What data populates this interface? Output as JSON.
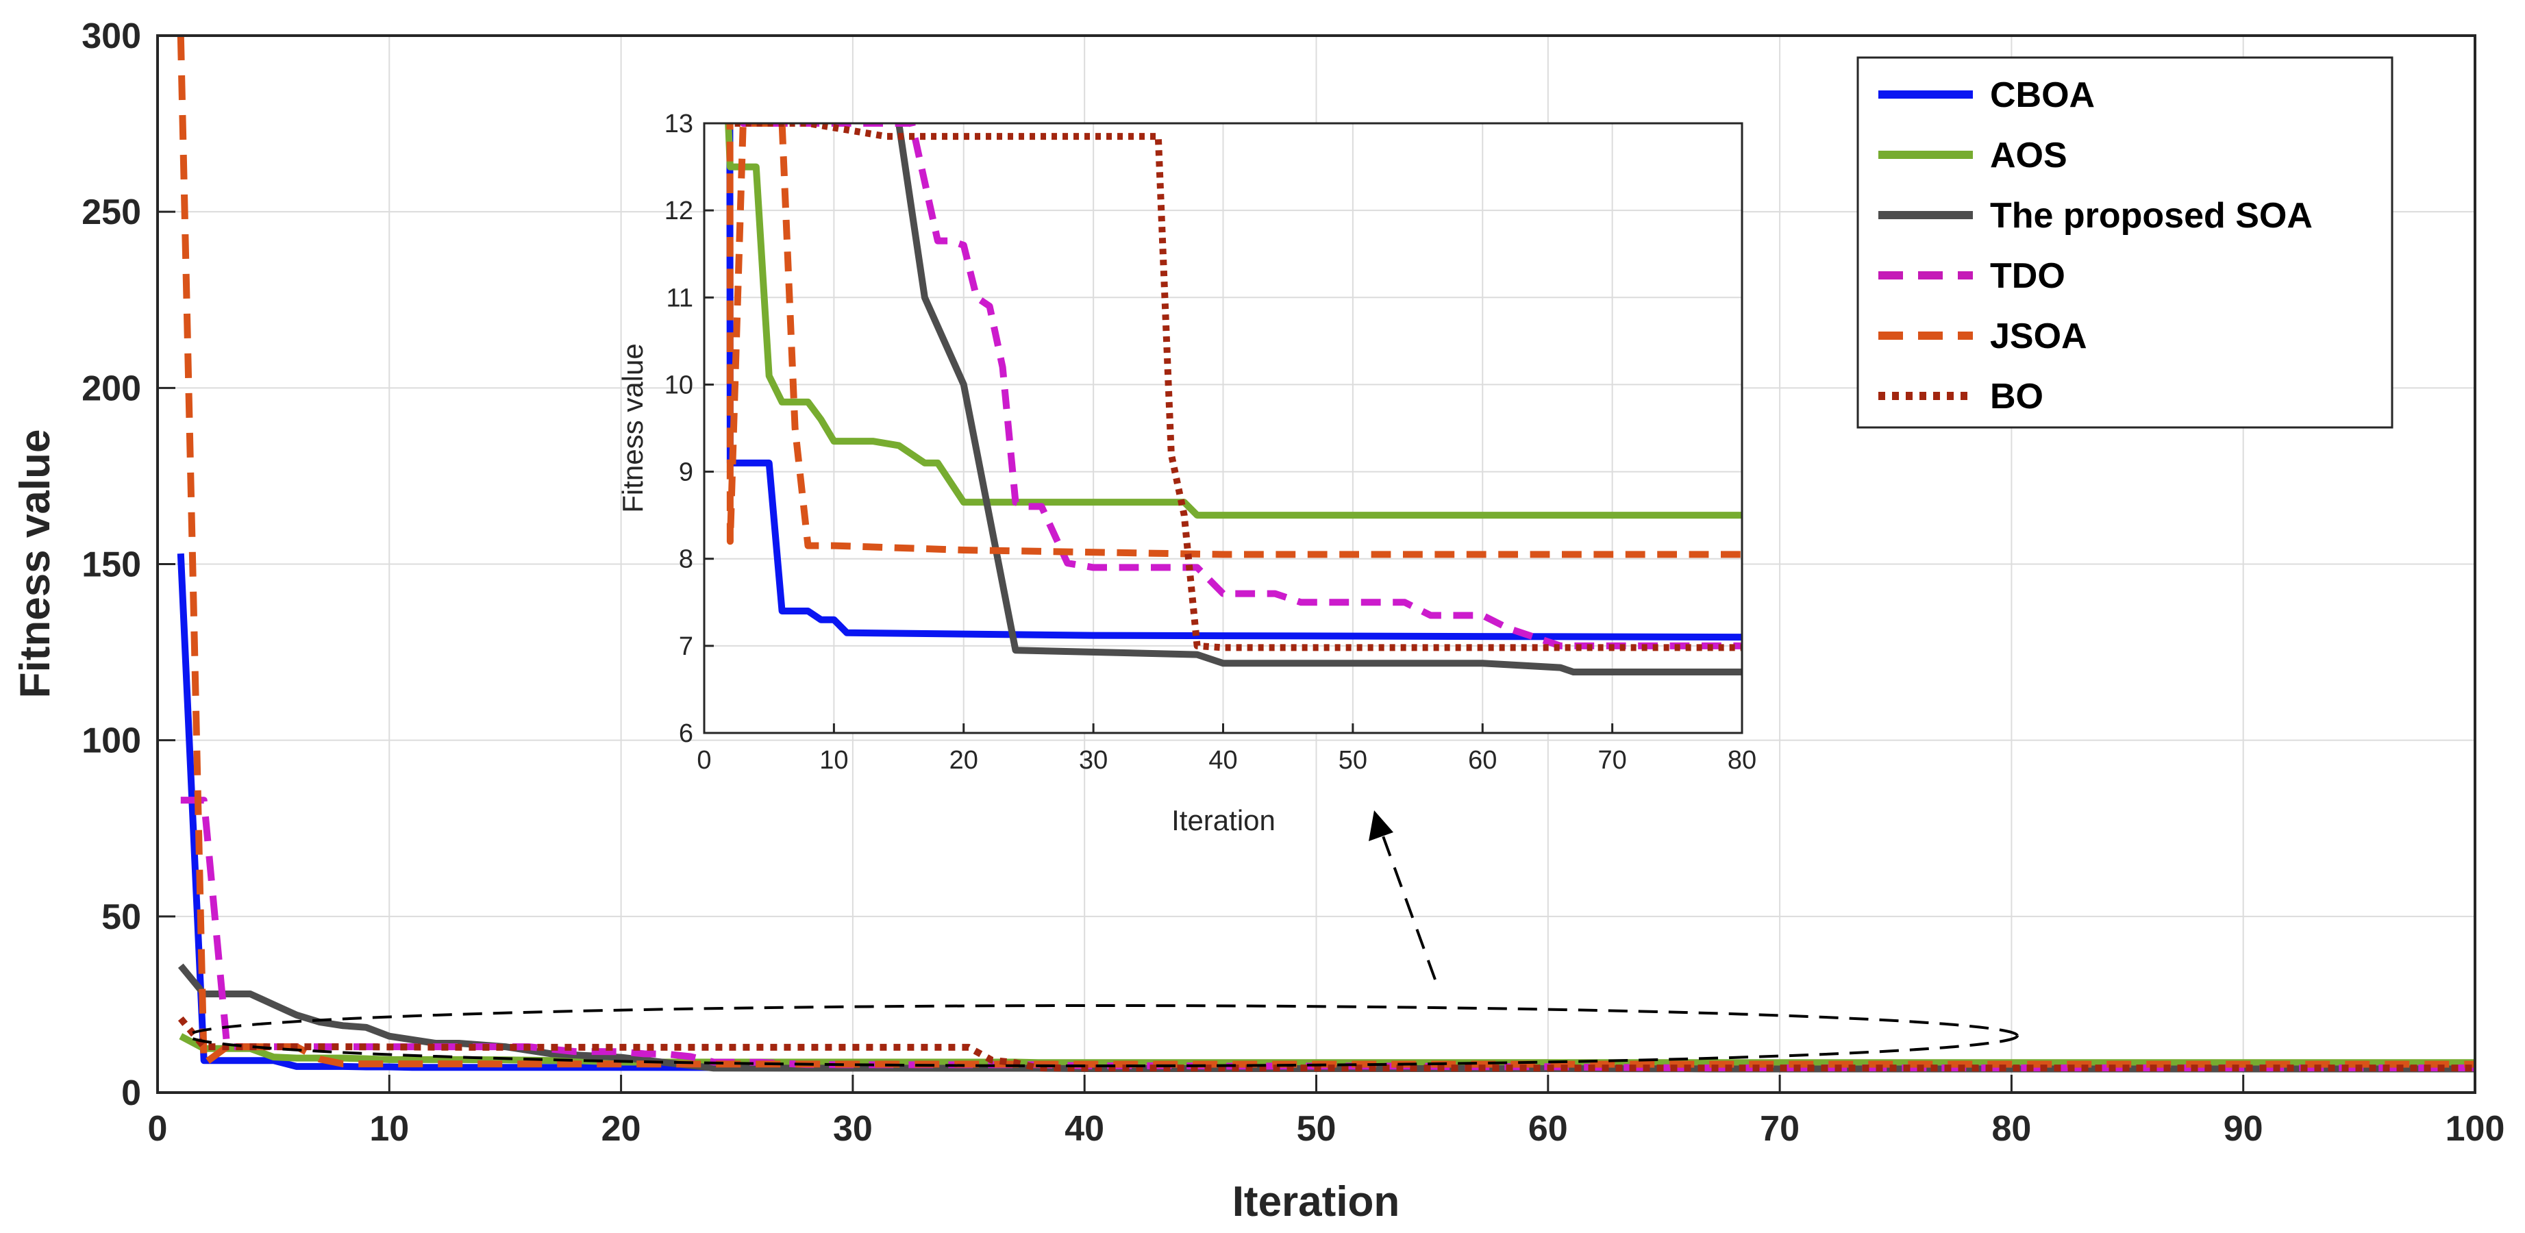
{
  "chart_data": {
    "type": "line",
    "main": {
      "xlabel": "Iteration",
      "ylabel": "Fitness value",
      "xlim": [
        0,
        100
      ],
      "ylim": [
        0,
        300
      ],
      "xticks": [
        0,
        10,
        20,
        30,
        40,
        50,
        60,
        70,
        80,
        90,
        100
      ],
      "yticks": [
        0,
        50,
        100,
        150,
        200,
        250,
        300
      ],
      "grid": true,
      "legend_position": "top-right"
    },
    "inset": {
      "xlabel": "Iteration",
      "ylabel": "Fitness value",
      "xlim": [
        0,
        80
      ],
      "ylim": [
        6,
        13
      ],
      "xticks": [
        0,
        10,
        20,
        30,
        40,
        50,
        60,
        70,
        80
      ],
      "yticks": [
        6,
        7,
        8,
        9,
        10,
        11,
        12,
        13
      ],
      "grid": true
    },
    "series": [
      {
        "name": "CBOA",
        "color": "#0a16f2",
        "dash": "solid",
        "x": [
          1,
          2,
          5,
          6,
          8,
          9,
          10,
          11,
          30,
          80,
          100
        ],
        "y": [
          153,
          9.1,
          9.1,
          7.4,
          7.4,
          7.3,
          7.3,
          7.15,
          7.12,
          7.1,
          7.1
        ]
      },
      {
        "name": "AOS",
        "color": "#77ac30",
        "dash": "solid",
        "x": [
          1,
          2,
          4,
          5,
          6,
          8,
          9,
          10,
          13,
          15,
          17,
          18,
          20,
          22,
          37,
          38,
          80,
          100
        ],
        "y": [
          16,
          12.5,
          12.5,
          10.1,
          9.8,
          9.8,
          9.6,
          9.35,
          9.35,
          9.3,
          9.1,
          9.1,
          8.65,
          8.65,
          8.65,
          8.5,
          8.5,
          8.5
        ]
      },
      {
        "name": "The proposed SOA",
        "color": "#4d4d4d",
        "dash": "solid",
        "x": [
          1,
          2,
          3,
          4,
          5,
          6,
          7,
          8,
          9,
          10,
          12,
          13,
          15,
          17,
          20,
          24,
          38,
          40,
          60,
          66,
          67,
          80,
          100
        ],
        "y": [
          36,
          28,
          28,
          28,
          25,
          22,
          20,
          19,
          18.5,
          16,
          14,
          14,
          13,
          11,
          10,
          6.95,
          6.9,
          6.8,
          6.8,
          6.75,
          6.7,
          6.7,
          6.7
        ]
      },
      {
        "name": "TDO",
        "color": "#cc1bcc",
        "dash": "dash",
        "legend_color": "#c51ab7",
        "x": [
          1,
          2,
          3,
          16,
          18,
          19,
          20,
          21,
          22,
          23,
          24,
          25,
          26,
          28,
          30,
          34,
          38,
          40,
          44,
          46,
          50,
          54,
          56,
          60,
          62,
          64,
          66,
          70,
          80,
          100
        ],
        "y": [
          83,
          83,
          13,
          13,
          11.65,
          11.65,
          11.6,
          11.0,
          10.9,
          10.2,
          8.65,
          8.6,
          8.6,
          7.95,
          7.9,
          7.9,
          7.9,
          7.6,
          7.6,
          7.5,
          7.5,
          7.5,
          7.35,
          7.35,
          7.2,
          7.1,
          7.0,
          7.0,
          7.0,
          7.0
        ]
      },
      {
        "name": "JSOA",
        "color": "#d95319",
        "dash": "dash",
        "x": [
          1,
          2,
          3,
          5,
          6,
          7,
          8,
          10,
          20,
          40,
          80,
          100
        ],
        "y": [
          300,
          8.2,
          13,
          13,
          13,
          9.5,
          8.15,
          8.15,
          8.1,
          8.05,
          8.05,
          8.05
        ]
      },
      {
        "name": "BO",
        "color": "#a2260f",
        "dash": "dot",
        "x": [
          1,
          2,
          3,
          5,
          6,
          8,
          12,
          14,
          20,
          35,
          36,
          37,
          38,
          40,
          80,
          100
        ],
        "y": [
          21,
          13,
          13,
          13,
          13,
          13,
          12.9,
          12.85,
          12.85,
          12.85,
          9.2,
          8.5,
          7.0,
          6.98,
          6.98,
          6.98
        ]
      }
    ]
  }
}
